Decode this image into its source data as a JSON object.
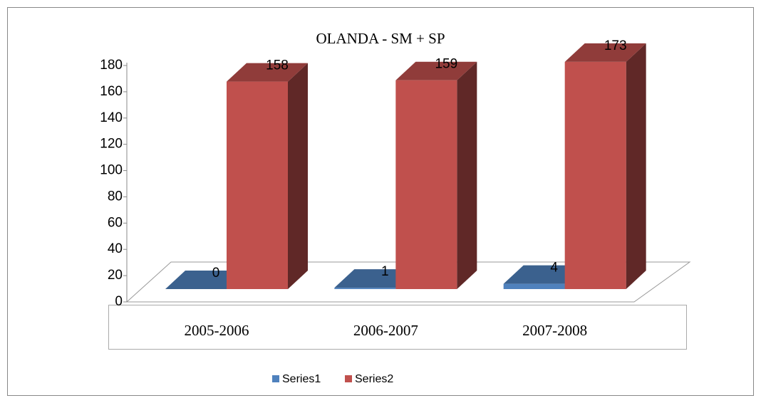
{
  "chart_data": {
    "type": "bar3d",
    "title": "OLANDA - SM + SP",
    "categories": [
      "2005-2006",
      "2006-2007",
      "2007-2008"
    ],
    "series": [
      {
        "name": "Series1",
        "color": "#4f81bd",
        "values": [
          0,
          1,
          4
        ]
      },
      {
        "name": "Series2",
        "color": "#c0504d",
        "values": [
          158,
          159,
          173
        ]
      }
    ],
    "ylim": [
      0,
      180
    ],
    "yticks": [
      0,
      20,
      40,
      60,
      80,
      100,
      120,
      140,
      160,
      180
    ],
    "grid": false,
    "data_labels": true,
    "legend": "bottom"
  }
}
